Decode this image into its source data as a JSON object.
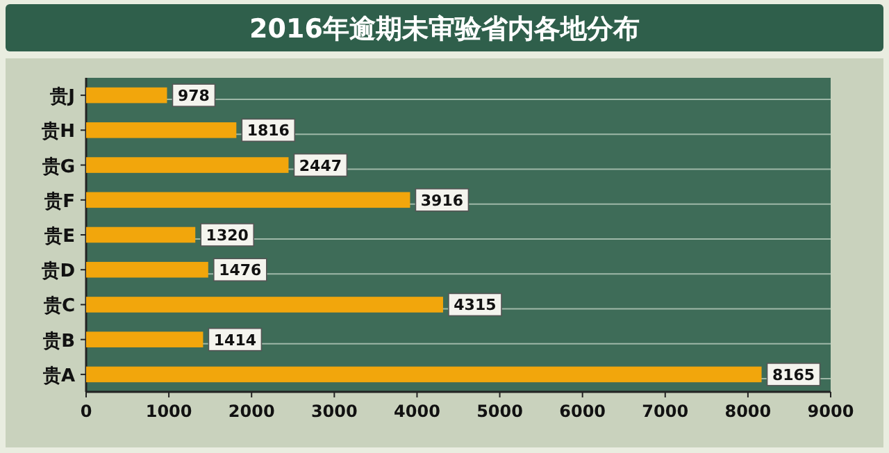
{
  "chart_data": {
    "type": "bar",
    "orientation": "horizontal",
    "title": "2016年逾期未审验省内各地分布",
    "categories": [
      "贵J",
      "贵H",
      "贵G",
      "贵F",
      "贵E",
      "贵D",
      "贵C",
      "贵B",
      "贵A"
    ],
    "values": [
      978,
      1816,
      2447,
      3916,
      1320,
      1476,
      4315,
      1414,
      8165
    ],
    "color": "#f2a60c",
    "xlim": [
      0,
      9000
    ],
    "xticks": [
      0,
      1000,
      2000,
      3000,
      4000,
      5000,
      6000,
      7000,
      8000,
      9000
    ],
    "grid": "y",
    "data_labels": true
  }
}
